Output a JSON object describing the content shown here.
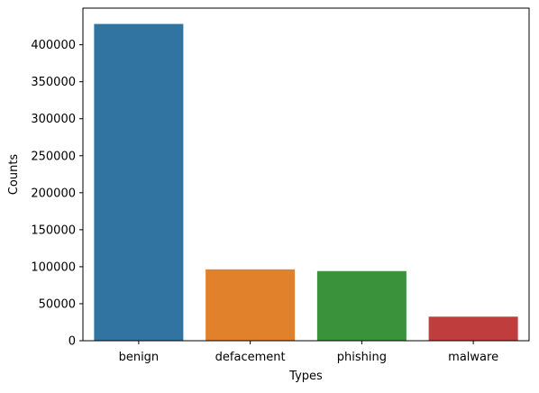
{
  "chart_data": {
    "type": "bar",
    "title": "",
    "xlabel": "Types",
    "ylabel": "Counts",
    "categories": [
      "benign",
      "defacement",
      "phishing",
      "malware"
    ],
    "values": [
      428103,
      96457,
      94111,
      32520
    ],
    "colors": [
      "#3274a1",
      "#e1812c",
      "#3a923a",
      "#c03d3e"
    ],
    "ylim": [
      0,
      449500
    ],
    "yticks": [
      0,
      50000,
      100000,
      150000,
      200000,
      250000,
      300000,
      350000,
      400000
    ],
    "grid": false
  }
}
